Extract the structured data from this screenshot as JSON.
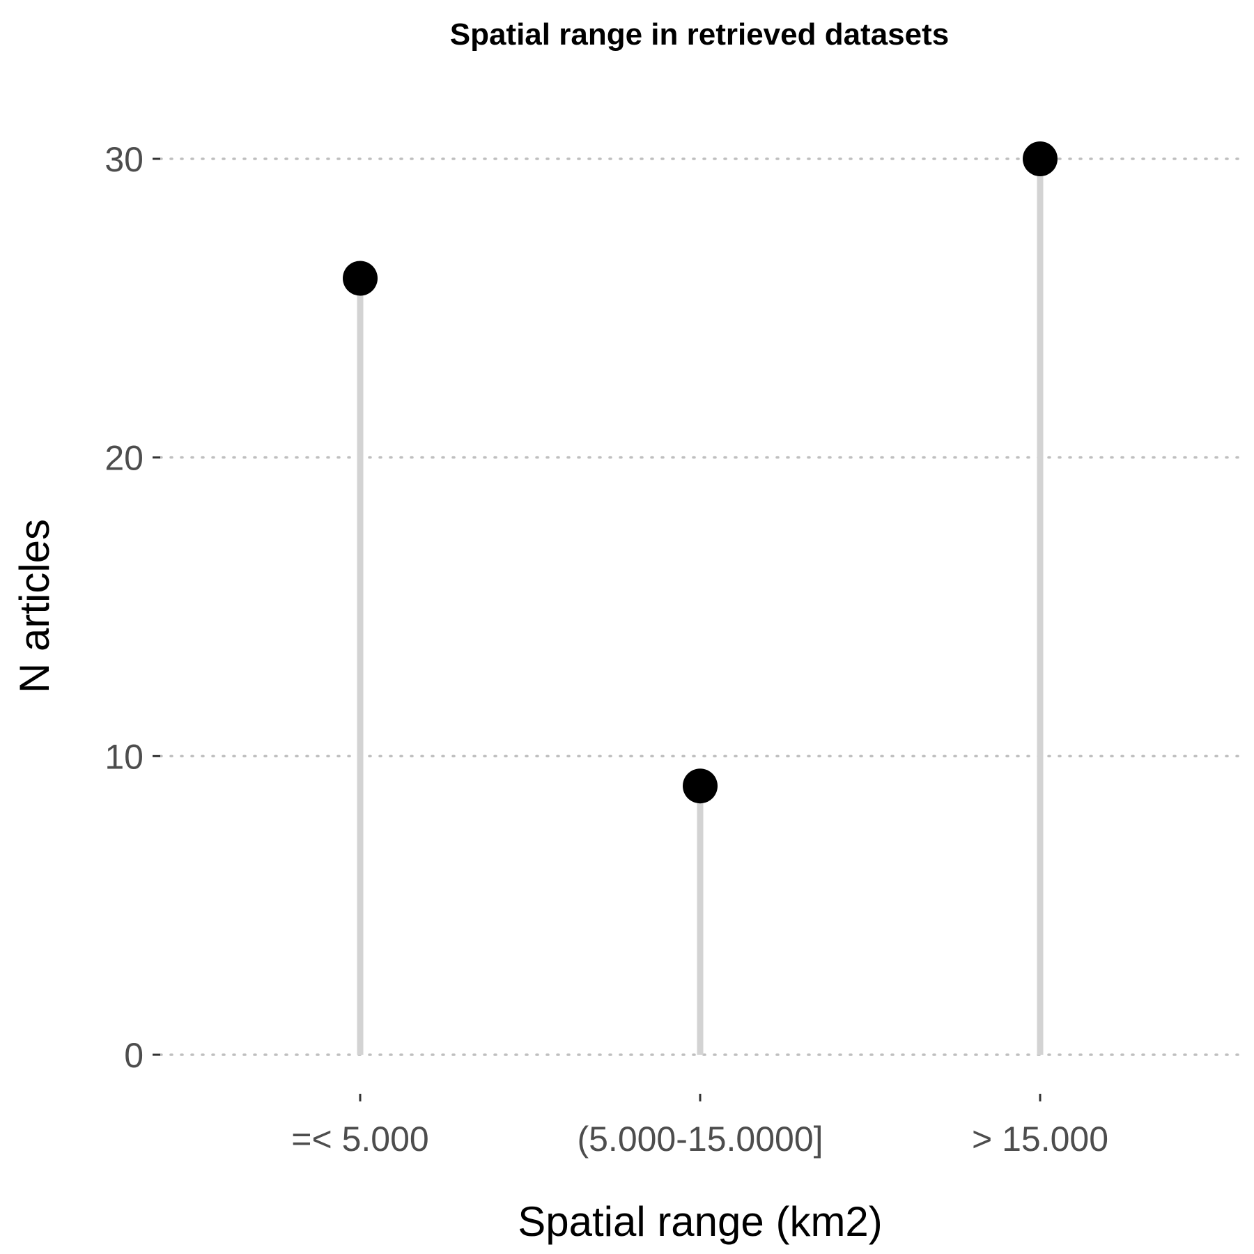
{
  "chart_data": {
    "type": "lollipop",
    "title": "Spatial range in retrieved datasets",
    "xlabel": "Spatial range (km2)",
    "ylabel": "N articles",
    "categories": [
      "=< 5.000",
      "(5.000-15.0000]",
      "> 15.000"
    ],
    "values": [
      26,
      9,
      30
    ],
    "ylim": [
      0,
      30
    ],
    "yticks": [
      0,
      10,
      20,
      30
    ],
    "grid": "horizontal dotted",
    "legend": "none",
    "colors": {
      "point": "#000000",
      "stem": "#d3d3d3",
      "grid": "#bfbfbf",
      "tick_label": "#4d4d4d"
    }
  }
}
